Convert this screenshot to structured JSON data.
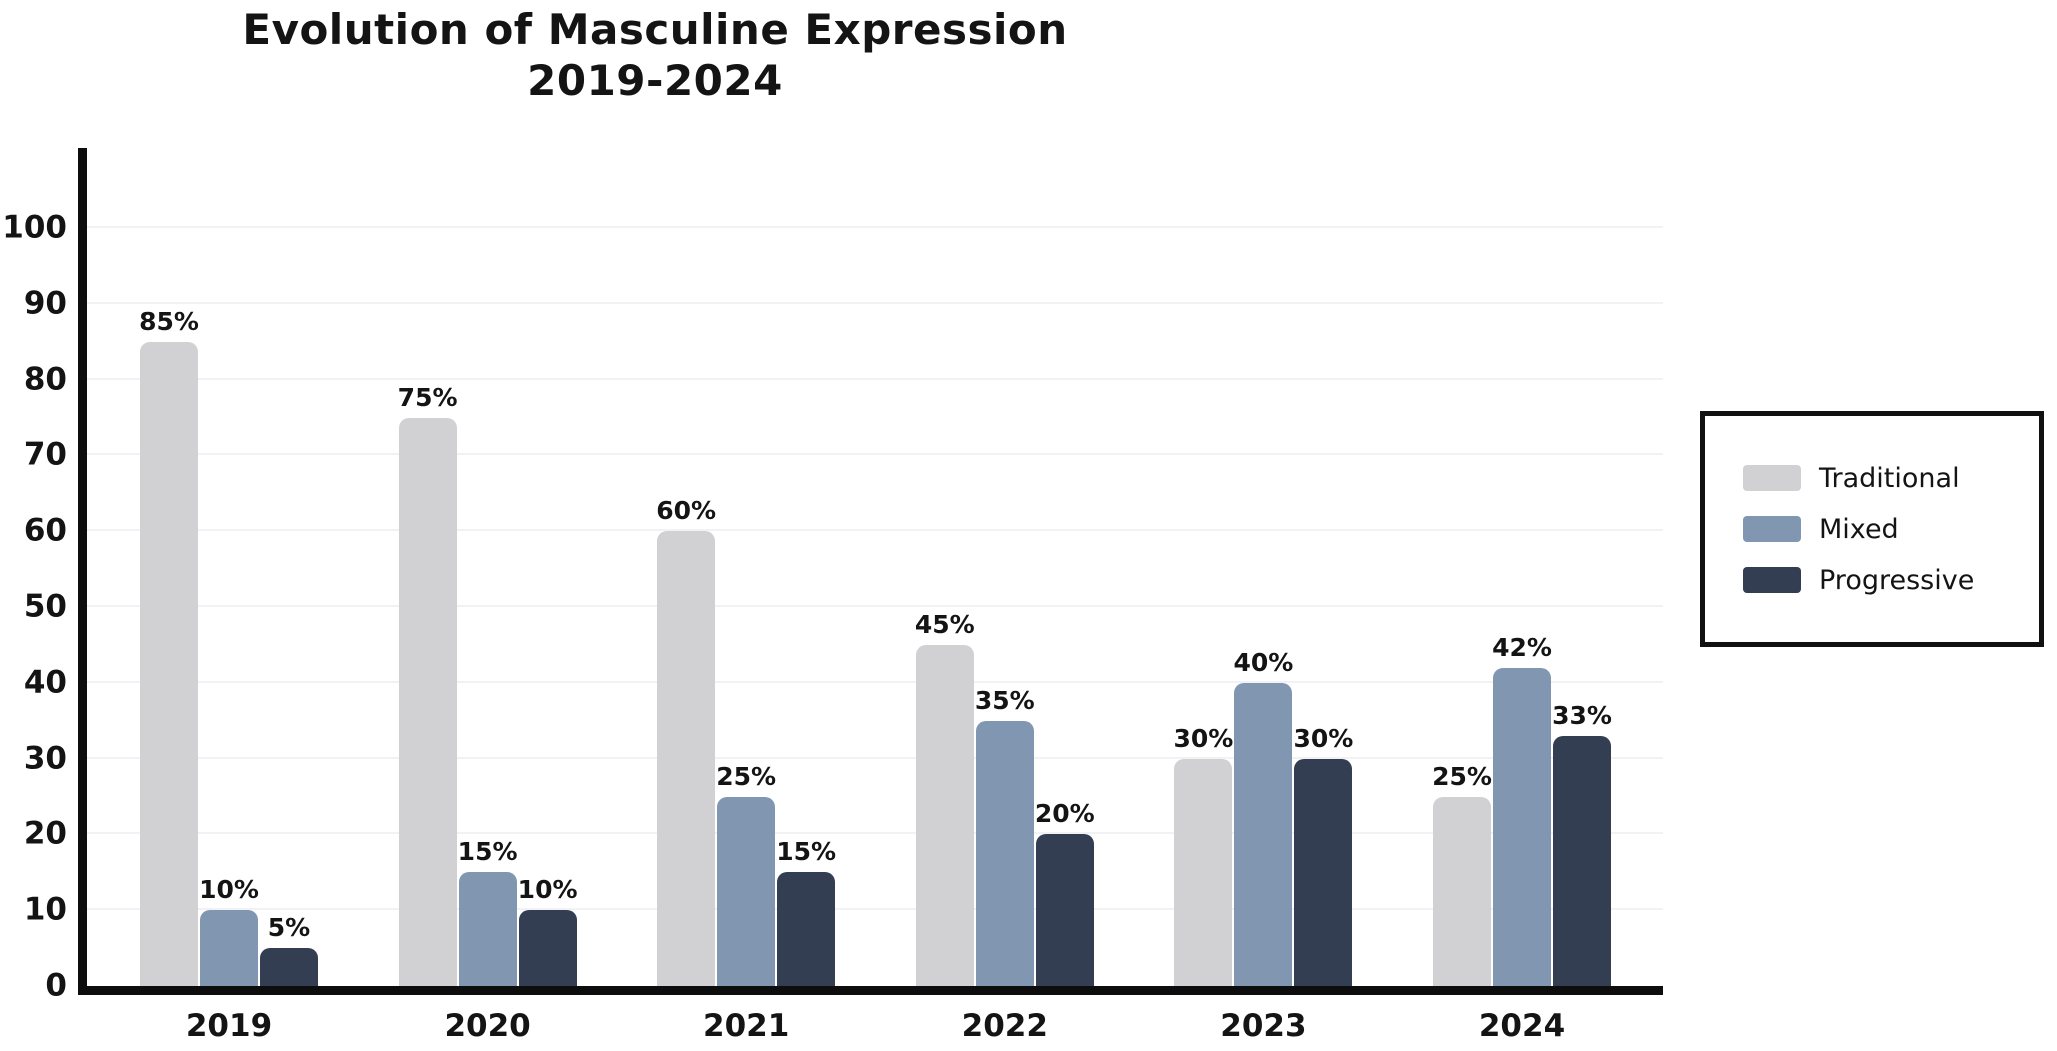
{
  "title": {
    "line1": "Evolution of Masculine Expression",
    "line2": "2019-2024"
  },
  "chart_data": {
    "type": "bar",
    "categories": [
      "2019",
      "2020",
      "2021",
      "2022",
      "2023",
      "2024"
    ],
    "series": [
      {
        "name": "Traditional",
        "color": "#d1d0d2",
        "values": [
          85,
          75,
          60,
          45,
          30,
          25
        ],
        "labels": [
          "85%",
          "75%",
          "60%",
          "45%",
          "30%",
          "25%"
        ]
      },
      {
        "name": "Mixed",
        "color": "#8196b0",
        "values": [
          10,
          15,
          25,
          35,
          40,
          42
        ],
        "labels": [
          "10%",
          "15%",
          "25%",
          "35%",
          "40%",
          "42%"
        ]
      },
      {
        "name": "Progressive",
        "color": "#333e53",
        "values": [
          5,
          10,
          15,
          20,
          30,
          33
        ],
        "labels": [
          "5%",
          "10%",
          "15%",
          "20%",
          "30%",
          "33%"
        ]
      }
    ],
    "y_axis": {
      "min": 0,
      "max": 100,
      "tick_step": 10,
      "ticks": [
        0,
        10,
        20,
        30,
        40,
        50,
        60,
        70,
        80,
        90,
        100
      ],
      "tick_labels": [
        "0",
        "10",
        "20",
        "30",
        "40",
        "50",
        "60",
        "70",
        "80",
        "90",
        "100"
      ]
    },
    "grid": true,
    "legend_position": "right",
    "legend_items": [
      "Traditional",
      "Mixed",
      "Progressive"
    ]
  },
  "colors": {
    "background": "#ffffff",
    "axis": "#0d0d0d",
    "gridline": "#f2f2f4",
    "text": "#141414",
    "traditional": "#d1d0d2",
    "mixed": "#8196b0",
    "progressive": "#333e53",
    "legend_border": "#111111"
  }
}
